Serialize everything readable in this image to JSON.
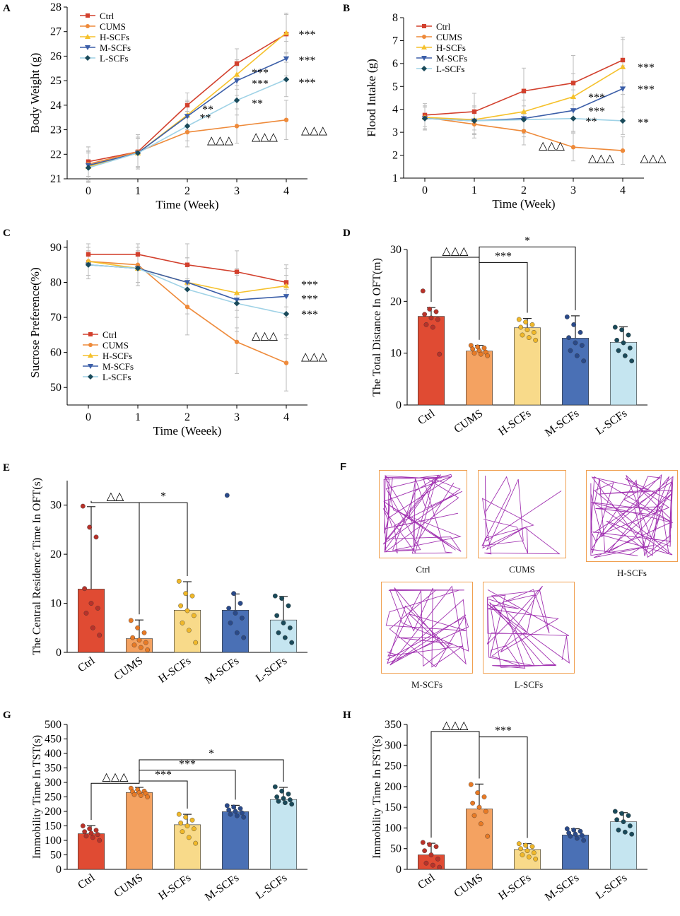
{
  "colors": {
    "Ctrl": "#d2402d",
    "CUMS": "#ee8a3a",
    "H-SCFs": "#f5c12c",
    "M-SCFs": "#3b5ea8",
    "L-SCFs": "#9fd2e6",
    "L-SCFs_marker": "#1a4a5a",
    "bar_Ctrl": "#e04b33",
    "bar_CUMS": "#f4a261",
    "bar_H-SCFs": "#f8da8a",
    "bar_M-SCFs": "#4a70b5",
    "bar_L-SCFs": "#c5e5f0",
    "maze": "#a030b0",
    "maze_border": "#f0a050"
  },
  "chart_data": [
    {
      "id": "A",
      "type": "line",
      "letter": "A",
      "xlabel": "Time (Week)",
      "ylabel": "Body Weight (g)",
      "x": [
        0,
        1,
        2,
        3,
        4
      ],
      "ylim": [
        21,
        28
      ],
      "yticks": [
        21,
        22,
        23,
        24,
        25,
        26,
        27,
        28
      ],
      "legend": [
        "Ctrl",
        "CUMS",
        "H-SCFs",
        "M-SCFs",
        "L-SCFs"
      ],
      "legend_pos": "top-left",
      "series": [
        {
          "name": "Ctrl",
          "values": [
            21.7,
            22.1,
            24.0,
            25.7,
            26.9
          ],
          "err": [
            0.6,
            0.6,
            0.5,
            0.6,
            0.8
          ]
        },
        {
          "name": "CUMS",
          "values": [
            21.6,
            22.1,
            22.9,
            23.15,
            23.4
          ],
          "err": [
            0.7,
            0.7,
            0.6,
            0.7,
            0.8
          ]
        },
        {
          "name": "H-SCFs",
          "values": [
            21.5,
            22.05,
            23.6,
            25.25,
            26.95
          ],
          "err": [
            0.6,
            0.6,
            0.6,
            0.6,
            0.8
          ]
        },
        {
          "name": "M-SCFs",
          "values": [
            21.55,
            22.05,
            23.55,
            25.0,
            25.9
          ],
          "err": [
            0.6,
            0.6,
            0.6,
            0.6,
            0.7
          ]
        },
        {
          "name": "L-SCFs",
          "values": [
            21.45,
            22.05,
            23.15,
            24.2,
            25.05
          ],
          "err": [
            0.6,
            0.6,
            0.6,
            0.6,
            0.7
          ]
        }
      ],
      "annotations": [
        {
          "text": "***",
          "x": 4.25,
          "y": 26.9
        },
        {
          "text": "***",
          "x": 4.25,
          "y": 25.85
        },
        {
          "text": "***",
          "x": 4.25,
          "y": 24.95
        },
        {
          "text": "***",
          "x": 3.3,
          "y": 25.35
        },
        {
          "text": "***",
          "x": 3.3,
          "y": 24.9
        },
        {
          "text": "**",
          "x": 3.3,
          "y": 24.1
        },
        {
          "text": "**",
          "x": 2.3,
          "y": 23.85
        },
        {
          "text": "**",
          "x": 2.25,
          "y": 23.5
        },
        {
          "text": "△△△",
          "x": 2.4,
          "y": 22.6
        },
        {
          "text": "△△△",
          "x": 3.3,
          "y": 22.75
        },
        {
          "text": "△△△",
          "x": 4.3,
          "y": 23.0
        }
      ]
    },
    {
      "id": "B",
      "type": "line",
      "letter": "B",
      "xlabel": "Time (Week)",
      "ylabel": "Flood Intake (g)",
      "x": [
        0,
        1,
        2,
        3,
        4
      ],
      "ylim": [
        1,
        8
      ],
      "yticks": [
        1,
        2,
        3,
        4,
        5,
        6,
        7,
        8
      ],
      "legend": [
        "Ctrl",
        "CUMS",
        "H-SCFs",
        "M-SCFs",
        "L-SCFs"
      ],
      "legend_pos": "top-left",
      "series": [
        {
          "name": "Ctrl",
          "values": [
            3.75,
            3.9,
            4.8,
            5.15,
            6.15
          ],
          "err": [
            0.5,
            0.8,
            1.0,
            1.2,
            1.0
          ]
        },
        {
          "name": "CUMS",
          "values": [
            3.65,
            3.35,
            3.05,
            2.35,
            2.2
          ],
          "err": [
            0.5,
            0.6,
            0.6,
            0.6,
            0.6
          ]
        },
        {
          "name": "H-SCFs",
          "values": [
            3.65,
            3.55,
            3.9,
            4.55,
            5.85
          ],
          "err": [
            0.5,
            0.6,
            0.8,
            1.0,
            1.2
          ]
        },
        {
          "name": "M-SCFs",
          "values": [
            3.6,
            3.5,
            3.6,
            3.95,
            4.9
          ],
          "err": [
            0.5,
            0.6,
            0.8,
            0.9,
            1.0
          ]
        },
        {
          "name": "L-SCFs",
          "values": [
            3.6,
            3.5,
            3.55,
            3.6,
            3.5
          ],
          "err": [
            0.5,
            0.6,
            0.6,
            0.6,
            0.6
          ]
        }
      ],
      "annotations": [
        {
          "text": "***",
          "x": 4.3,
          "y": 5.85
        },
        {
          "text": "***",
          "x": 4.3,
          "y": 4.9
        },
        {
          "text": "**",
          "x": 4.3,
          "y": 3.45
        },
        {
          "text": "***",
          "x": 3.3,
          "y": 4.55
        },
        {
          "text": "***",
          "x": 3.3,
          "y": 3.95
        },
        {
          "text": "**",
          "x": 3.25,
          "y": 3.5
        },
        {
          "text": "△△△",
          "x": 2.3,
          "y": 2.45
        },
        {
          "text": "△△△",
          "x": 3.3,
          "y": 1.9
        },
        {
          "text": "△△△",
          "x": 4.35,
          "y": 1.9
        }
      ]
    },
    {
      "id": "C",
      "type": "line",
      "letter": "C",
      "xlabel": "Time (Weeek)",
      "ylabel": "Sucrose Preference(%)",
      "x": [
        0,
        1,
        2,
        3,
        4
      ],
      "ylim": [
        45,
        92
      ],
      "yticks": [
        50,
        60,
        70,
        80,
        90
      ],
      "legend": [
        "Ctrl",
        "CUMS",
        "H-SCFs",
        "M-SCFs",
        "L-SCFs"
      ],
      "legend_pos": "bottom-left",
      "series": [
        {
          "name": "Ctrl",
          "values": [
            88,
            88,
            85,
            83,
            80
          ],
          "err": [
            3,
            3,
            6,
            6,
            4
          ]
        },
        {
          "name": "CUMS",
          "values": [
            86,
            85,
            73,
            63,
            57
          ],
          "err": [
            4,
            5,
            8,
            9,
            8
          ]
        },
        {
          "name": "H-SCFs",
          "values": [
            86,
            84,
            80,
            77,
            79
          ],
          "err": [
            4,
            5,
            7,
            7,
            6
          ]
        },
        {
          "name": "M-SCFs",
          "values": [
            85,
            84,
            80,
            75,
            76
          ],
          "err": [
            4,
            5,
            7,
            8,
            6
          ]
        },
        {
          "name": "L-SCFs",
          "values": [
            85,
            84,
            78,
            74,
            71
          ],
          "err": [
            4,
            5,
            7,
            8,
            7
          ]
        }
      ],
      "annotations": [
        {
          "text": "***",
          "x": 4.3,
          "y": 79.5
        },
        {
          "text": "***",
          "x": 4.3,
          "y": 75.5
        },
        {
          "text": "***",
          "x": 4.3,
          "y": 71
        },
        {
          "text": "△△△",
          "x": 3.3,
          "y": 65
        },
        {
          "text": "△△△",
          "x": 4.3,
          "y": 59
        }
      ]
    },
    {
      "id": "D",
      "type": "bar",
      "letter": "D",
      "ylabel": "The Total Distance In OFT(m)",
      "categories": [
        "Ctrl",
        "CUMS",
        "H-SCFs",
        "M-SCFs",
        "L-SCFs"
      ],
      "values": [
        17.1,
        10.4,
        14.9,
        12.9,
        12.1
      ],
      "err": [
        1.7,
        1.1,
        1.8,
        4.3,
        3.0
      ],
      "ylim": [
        0,
        30
      ],
      "yticks": [
        0,
        10,
        20,
        30
      ],
      "points": [
        [
          22,
          18.5,
          18,
          17.5,
          16.8,
          16.5,
          15.5,
          15,
          9.8
        ],
        [
          11.5,
          11.2,
          11,
          10.8,
          10.5,
          10.2,
          10,
          9.8,
          9.5
        ],
        [
          16.5,
          16,
          15.5,
          15,
          14.5,
          14,
          13.5,
          13,
          12.5
        ],
        [
          17,
          15.5,
          14,
          13,
          12,
          11.5,
          10.5,
          9.5,
          8.5
        ],
        [
          15,
          14.5,
          13.5,
          12.5,
          12,
          11,
          10.5,
          9.5,
          8.5
        ]
      ],
      "brackets": [
        {
          "from": 0,
          "to": 1,
          "y": 28.5,
          "label": "△△△"
        },
        {
          "from": 1,
          "to": 3,
          "y": 30.5,
          "label": "*"
        },
        {
          "from": 1,
          "to": 2,
          "y": 27.5,
          "label": "***"
        }
      ]
    },
    {
      "id": "E",
      "type": "bar",
      "letter": "E",
      "ylabel": "The Central Residence Time In OFT(s)",
      "categories": [
        "Ctrl",
        "CUMS",
        "H-SCFs",
        "M-SCFs",
        "L-SCFs"
      ],
      "values": [
        12.9,
        2.8,
        8.6,
        8.6,
        6.6
      ],
      "err": [
        16.8,
        3.8,
        5.8,
        3.3,
        4.8
      ],
      "ylim": [
        0,
        35
      ],
      "yticks": [
        0,
        10,
        20,
        30
      ],
      "points": [
        [
          29.8,
          25.5,
          23.5,
          13,
          10,
          9,
          8,
          5,
          3.5
        ],
        [
          6.5,
          5,
          4,
          3,
          2.5,
          2,
          1.5,
          1,
          0.5
        ],
        [
          14.5,
          12,
          11.5,
          9.5,
          8.5,
          7.5,
          6,
          4.5,
          2
        ],
        [
          32,
          12,
          10,
          9,
          8,
          7,
          6,
          4,
          3
        ],
        [
          11.5,
          11,
          9.5,
          7.5,
          6,
          5,
          4,
          3,
          2
        ]
      ],
      "brackets": [
        {
          "from": 0,
          "to": 1,
          "y": 30.5,
          "label": "△△"
        },
        {
          "from": 1,
          "to": 2,
          "y": 30.5,
          "label": "*"
        }
      ]
    },
    {
      "id": "G",
      "type": "bar",
      "letter": "G",
      "ylabel": "Immobility Time In TST(s)",
      "categories": [
        "Ctrl",
        "CUMS",
        "H-SCFs",
        "M-SCFs",
        "L-SCFs"
      ],
      "values": [
        123,
        265,
        154,
        199,
        241
      ],
      "err": [
        28,
        18,
        36,
        22,
        42
      ],
      "ylim": [
        0,
        500
      ],
      "yticks": [
        0,
        50,
        100,
        150,
        200,
        250,
        300,
        350,
        400,
        450,
        500
      ],
      "points": [
        [
          150,
          140,
          135,
          130,
          125,
          120,
          115,
          110,
          100
        ],
        [
          280,
          275,
          270,
          268,
          265,
          262,
          258,
          255,
          250
        ],
        [
          190,
          180,
          170,
          160,
          150,
          140,
          130,
          110,
          90
        ],
        [
          220,
          215,
          210,
          205,
          200,
          195,
          190,
          185,
          180
        ],
        [
          285,
          270,
          260,
          250,
          245,
          240,
          235,
          230,
          225
        ]
      ],
      "brackets": [
        {
          "from": 0,
          "to": 1,
          "y": 297,
          "label": "△△△"
        },
        {
          "from": 1,
          "to": 4,
          "y": 378,
          "label": "*"
        },
        {
          "from": 1,
          "to": 3,
          "y": 342,
          "label": "***"
        },
        {
          "from": 1,
          "to": 2,
          "y": 305,
          "label": "***"
        }
      ]
    },
    {
      "id": "H",
      "type": "bar",
      "letter": "H",
      "ylabel": "Immobility Time In FST(s)",
      "categories": [
        "Ctrl",
        "CUMS",
        "H-SCFs",
        "M-SCFs",
        "L-SCFs"
      ],
      "values": [
        35,
        146,
        48,
        83,
        115
      ],
      "err": [
        28,
        60,
        14,
        15,
        22
      ],
      "ylim": [
        0,
        350
      ],
      "yticks": [
        0,
        50,
        100,
        150,
        200,
        250,
        300,
        350
      ],
      "points": [
        [
          65,
          60,
          55,
          45,
          35,
          25,
          15,
          10,
          5
        ],
        [
          205,
          185,
          175,
          160,
          150,
          140,
          130,
          110,
          80
        ],
        [
          62,
          58,
          55,
          50,
          45,
          40,
          35,
          30,
          25
        ],
        [
          98,
          95,
          92,
          88,
          85,
          82,
          80,
          75,
          70
        ],
        [
          140,
          135,
          130,
          120,
          115,
          105,
          95,
          90,
          85
        ]
      ],
      "brackets": [
        {
          "from": 0,
          "to": 1,
          "y": 333,
          "label": "△△△"
        },
        {
          "from": 1,
          "to": 2,
          "y": 320,
          "label": "***"
        }
      ]
    }
  ],
  "panel_f": {
    "letter": "F",
    "arenas": [
      {
        "label": "Ctrl",
        "density": 60
      },
      {
        "label": "CUMS",
        "density": 22
      },
      {
        "label": "H-SCFs",
        "density": 65
      },
      {
        "label": "M-SCFs",
        "density": 38
      },
      {
        "label": "L-SCFs",
        "density": 42
      }
    ]
  }
}
